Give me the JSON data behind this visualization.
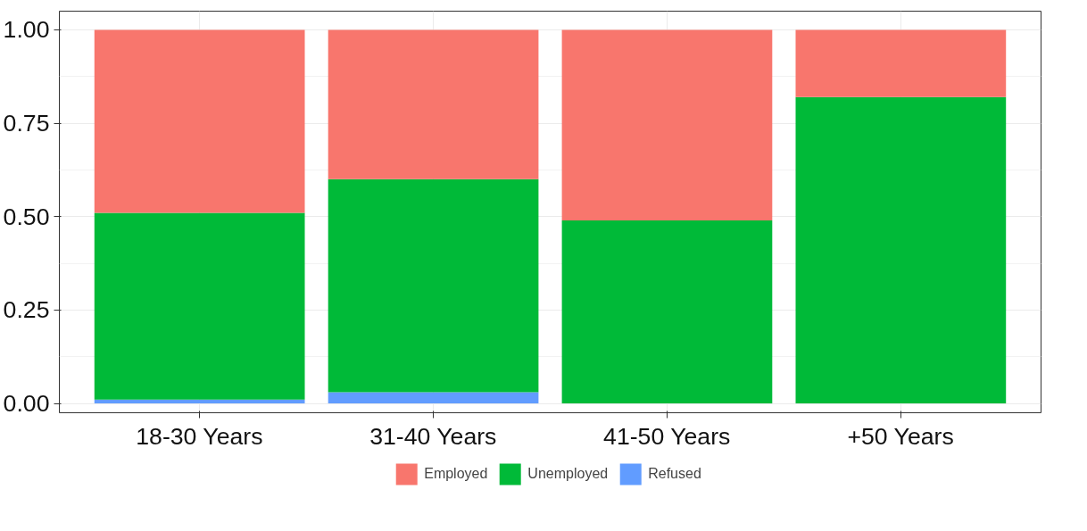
{
  "chart_data": {
    "type": "bar",
    "stacked": true,
    "categories": [
      "18-30 Years",
      "31-40 Years",
      "41-50 Years",
      "+50 Years"
    ],
    "series": [
      {
        "name": "Refused",
        "color": "#619cff",
        "values": [
          0.01,
          0.03,
          0,
          0
        ]
      },
      {
        "name": "Unemployed",
        "color": "#00ba38",
        "values": [
          0.5,
          0.57,
          0.49,
          0.82
        ]
      },
      {
        "name": "Employed",
        "color": "#f8766d",
        "values": [
          0.49,
          0.4,
          0.51,
          0.18
        ]
      }
    ],
    "ylim": [
      -0.025,
      1.05
    ],
    "yticks": [
      {
        "value": 0,
        "label": "0.00"
      },
      {
        "value": 0.25,
        "label": "0.25"
      },
      {
        "value": 0.5,
        "label": "0.50"
      },
      {
        "value": 0.75,
        "label": "0.75"
      },
      {
        "value": 1,
        "label": "1.00"
      }
    ],
    "grid": true,
    "legend": "bottom"
  }
}
